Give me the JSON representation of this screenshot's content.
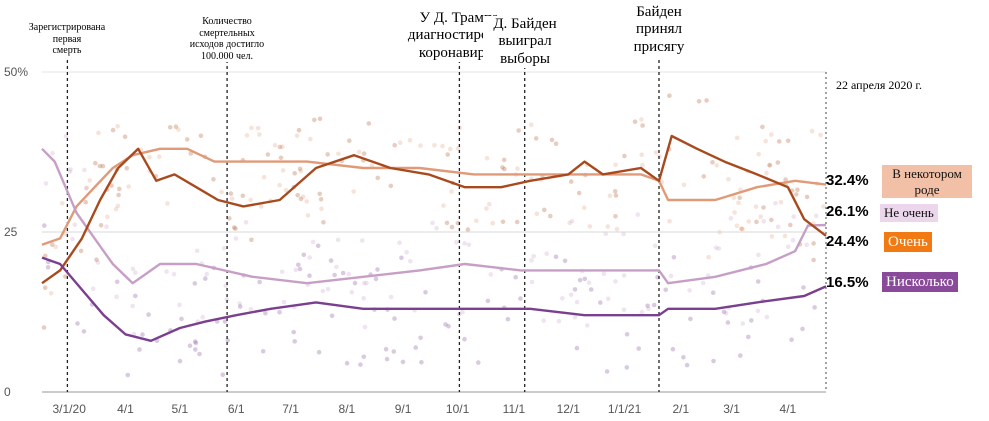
{
  "chart_data": {
    "type": "line",
    "date_label": "22 апреля 2020 г.",
    "y_axis": {
      "ticks": [
        "0",
        "25",
        "50%"
      ],
      "ylim": [
        0,
        50
      ]
    },
    "x_axis": {
      "ticks": [
        "3/1/20",
        "4/1",
        "5/1",
        "6/1",
        "7/1",
        "8/1",
        "9/1",
        "10/1",
        "11/1",
        "12/1",
        "1/1/21",
        "2/1",
        "3/1",
        "4/1"
      ]
    },
    "annotations": [
      {
        "lines": [
          "Зарегистрирована",
          "первая",
          "смерть"
        ],
        "x": "2020-02-29"
      },
      {
        "lines": [
          "Количество",
          "смертельных",
          "исходов достигло",
          "100.000 чел."
        ],
        "x": "2020-05-27"
      },
      {
        "lines": [
          "У Д. Трампа",
          "диагностирован",
          "коронавирус"
        ],
        "x": "2020-10-02"
      },
      {
        "lines": [
          "Д. Байден",
          "выиграл",
          "выборы"
        ],
        "x": "2020-11-07"
      },
      {
        "lines": [
          "Байден",
          "принял",
          "присягу"
        ],
        "x": "2021-01-20"
      }
    ],
    "series": [
      {
        "name": "В некотором роде",
        "end_value": "32.4%",
        "color": "#e09a78",
        "points": [
          [
            "2020-02-15",
            23
          ],
          [
            "2020-02-25",
            24
          ],
          [
            "2020-03-05",
            29
          ],
          [
            "2020-03-15",
            32
          ],
          [
            "2020-03-25",
            35
          ],
          [
            "2020-04-05",
            37
          ],
          [
            "2020-04-20",
            38
          ],
          [
            "2020-05-05",
            38
          ],
          [
            "2020-05-20",
            36
          ],
          [
            "2020-06-10",
            36
          ],
          [
            "2020-07-10",
            36
          ],
          [
            "2020-08-10",
            35
          ],
          [
            "2020-09-10",
            35
          ],
          [
            "2020-10-10",
            34
          ],
          [
            "2020-11-10",
            34
          ],
          [
            "2020-12-10",
            34
          ],
          [
            "2021-01-10",
            34
          ],
          [
            "2021-01-20",
            33
          ],
          [
            "2021-01-25",
            30
          ],
          [
            "2021-02-20",
            30
          ],
          [
            "2021-03-15",
            32
          ],
          [
            "2021-04-05",
            33
          ],
          [
            "2021-04-22",
            32.4
          ]
        ]
      },
      {
        "name": "Не очень",
        "end_value": "26.1%",
        "color": "#c79fc6",
        "points": [
          [
            "2020-02-15",
            38
          ],
          [
            "2020-02-22",
            36
          ],
          [
            "2020-03-05",
            28
          ],
          [
            "2020-03-15",
            24
          ],
          [
            "2020-03-25",
            20
          ],
          [
            "2020-04-05",
            17
          ],
          [
            "2020-04-20",
            20
          ],
          [
            "2020-05-10",
            20
          ],
          [
            "2020-06-10",
            18
          ],
          [
            "2020-07-10",
            17
          ],
          [
            "2020-08-10",
            18
          ],
          [
            "2020-09-10",
            19
          ],
          [
            "2020-10-05",
            20
          ],
          [
            "2020-11-05",
            19
          ],
          [
            "2020-12-05",
            19
          ],
          [
            "2021-01-05",
            19
          ],
          [
            "2021-01-20",
            19
          ],
          [
            "2021-01-25",
            17
          ],
          [
            "2021-02-20",
            18
          ],
          [
            "2021-03-20",
            20
          ],
          [
            "2021-04-05",
            22
          ],
          [
            "2021-04-12",
            26
          ],
          [
            "2021-04-22",
            26.1
          ]
        ]
      },
      {
        "name": "Очень",
        "end_value": "24.4%",
        "color": "#a94a1e",
        "points": [
          [
            "2020-02-15",
            17
          ],
          [
            "2020-02-25",
            19
          ],
          [
            "2020-03-08",
            24
          ],
          [
            "2020-03-18",
            30
          ],
          [
            "2020-03-28",
            35
          ],
          [
            "2020-04-08",
            38
          ],
          [
            "2020-04-18",
            33
          ],
          [
            "2020-04-28",
            34
          ],
          [
            "2020-05-10",
            32
          ],
          [
            "2020-05-22",
            30
          ],
          [
            "2020-06-05",
            29
          ],
          [
            "2020-06-25",
            30
          ],
          [
            "2020-07-15",
            35
          ],
          [
            "2020-08-05",
            37
          ],
          [
            "2020-08-25",
            35
          ],
          [
            "2020-09-15",
            34
          ],
          [
            "2020-10-05",
            32
          ],
          [
            "2020-10-25",
            32
          ],
          [
            "2020-11-10",
            33
          ],
          [
            "2020-12-01",
            34
          ],
          [
            "2020-12-10",
            36
          ],
          [
            "2020-12-20",
            34
          ],
          [
            "2021-01-10",
            35
          ],
          [
            "2021-01-20",
            33
          ],
          [
            "2021-01-27",
            40
          ],
          [
            "2021-02-10",
            38
          ],
          [
            "2021-02-25",
            36
          ],
          [
            "2021-03-15",
            34
          ],
          [
            "2021-04-01",
            32
          ],
          [
            "2021-04-10",
            27
          ],
          [
            "2021-04-22",
            24.4
          ]
        ]
      },
      {
        "name": "Нисколько",
        "end_value": "16.5%",
        "color": "#7b3f8f",
        "points": [
          [
            "2020-02-15",
            21
          ],
          [
            "2020-02-25",
            20
          ],
          [
            "2020-03-08",
            16
          ],
          [
            "2020-03-20",
            12
          ],
          [
            "2020-04-01",
            9
          ],
          [
            "2020-04-15",
            8
          ],
          [
            "2020-05-01",
            10
          ],
          [
            "2020-05-15",
            11
          ],
          [
            "2020-06-01",
            12
          ],
          [
            "2020-06-20",
            13
          ],
          [
            "2020-07-15",
            14
          ],
          [
            "2020-08-10",
            13
          ],
          [
            "2020-09-10",
            13
          ],
          [
            "2020-10-10",
            13
          ],
          [
            "2020-11-10",
            13
          ],
          [
            "2020-12-10",
            12
          ],
          [
            "2021-01-10",
            12
          ],
          [
            "2021-01-20",
            12
          ],
          [
            "2021-01-25",
            13
          ],
          [
            "2021-02-20",
            13
          ],
          [
            "2021-03-15",
            14
          ],
          [
            "2021-04-10",
            15
          ],
          [
            "2021-04-22",
            16.5
          ]
        ]
      }
    ]
  }
}
